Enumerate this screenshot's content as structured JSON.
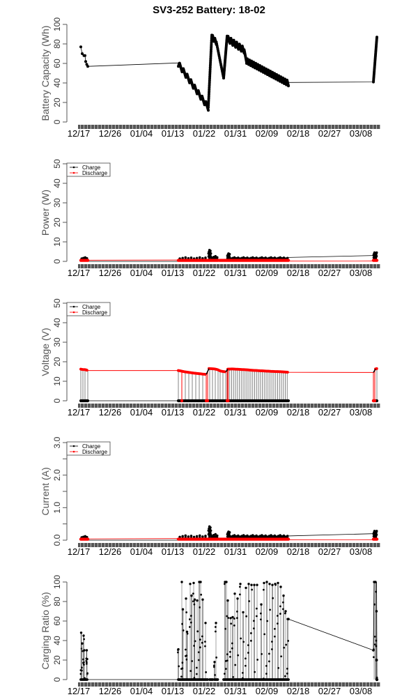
{
  "chart_data": [
    {
      "type": "line",
      "title": "SV3-252 Battery: 18-02",
      "ylabel": "Battery Capacity (Wh)",
      "xlabel": "",
      "ylim": [
        0,
        100
      ],
      "yticks": [
        "0",
        "20",
        "40",
        "60",
        "80",
        "100"
      ],
      "x_tick_labels": [
        "12/17",
        "12/26",
        "01/04",
        "01/13",
        "01/22",
        "01/31",
        "02/09",
        "02/18",
        "02/27",
        "03/08"
      ],
      "x_range_days": [
        0,
        87
      ],
      "legend": null,
      "series": [
        {
          "name": "Battery Capacity",
          "color": "#000000",
          "segments": [
            {
              "kind": "points",
              "x": [
                0.6,
                1.0,
                1.5,
                1.8,
                2.0,
                2.3,
                2.6
              ],
              "y": [
                77,
                70,
                68,
                68,
                62,
                59,
                57
              ]
            },
            {
              "kind": "flat",
              "from": [
                2.6,
                57
              ],
              "to": [
                28.6,
                60.5
              ]
            },
            {
              "kind": "sawtooth",
              "x0": 28.6,
              "x1": 37.2,
              "y0": 60,
              "y1": 15,
              "amp": 6,
              "cycles": 8
            },
            {
              "kind": "ramp",
              "x0": 37.2,
              "x1": 38.2,
              "y0": 15,
              "y1": 89,
              "n": 40
            },
            {
              "kind": "sawtooth",
              "x0": 38.2,
              "x1": 39.5,
              "y0": 88,
              "y1": 82,
              "amp": 5,
              "cycles": 2
            },
            {
              "kind": "ramp",
              "x0": 39.5,
              "x1": 41.6,
              "y0": 82,
              "y1": 45,
              "n": 20
            },
            {
              "kind": "ramp",
              "x0": 41.6,
              "x1": 42.6,
              "y0": 45,
              "y1": 88,
              "n": 35
            },
            {
              "kind": "sawtooth",
              "x0": 42.6,
              "x1": 47.5,
              "y0": 86,
              "y1": 74,
              "amp": 7,
              "cycles": 6
            },
            {
              "kind": "ramp",
              "x0": 47.5,
              "x1": 48.2,
              "y0": 74,
              "y1": 61,
              "n": 10
            },
            {
              "kind": "sawtooth",
              "x0": 48.2,
              "x1": 60.2,
              "y0": 63,
              "y1": 40,
              "amp": 6,
              "cycles": 20
            },
            {
              "kind": "flat",
              "from": [
                60.2,
                40.5
              ],
              "to": [
                84.6,
                41
              ]
            },
            {
              "kind": "ramp",
              "x0": 84.6,
              "x1": 85.6,
              "y0": 41,
              "y1": 87,
              "n": 30
            }
          ]
        }
      ]
    },
    {
      "type": "line",
      "ylabel": "Power (W)",
      "ylim": [
        0,
        50
      ],
      "yticks": [
        "0",
        "10",
        "20",
        "30",
        "40",
        "50"
      ],
      "x_tick_labels": [
        "12/17",
        "12/26",
        "01/04",
        "01/13",
        "01/22",
        "01/31",
        "02/09",
        "02/18",
        "02/27",
        "03/08"
      ],
      "legend": {
        "position": "top-left",
        "entries": [
          "Charge",
          "Discharge"
        ]
      },
      "series": [
        {
          "name": "Charge",
          "color": "#000000",
          "baseline": 0,
          "spikes": [
            {
              "day_range": [
                0.6,
                2.6
              ],
              "count": 4,
              "peak": 2
            },
            {
              "day_range": [
                28.6,
                36.8
              ],
              "count": 10,
              "peak": 2
            },
            {
              "day_range": [
                37.2,
                38.0
              ],
              "count": 6,
              "peak": 5.8
            },
            {
              "day_range": [
                38.0,
                40.0
              ],
              "count": 4,
              "peak": 2.6
            },
            {
              "day_range": [
                42.6,
                43.4
              ],
              "count": 5,
              "peak": 4
            },
            {
              "day_range": [
                43.4,
                60.2
              ],
              "count": 32,
              "peak": 2
            },
            {
              "day_range": [
                84.6,
                85.6
              ],
              "count": 8,
              "peak": 4.5
            }
          ],
          "tail_line": {
            "from": [
              60.2,
              2
            ],
            "to": [
              84.6,
              3
            ]
          }
        },
        {
          "name": "Discharge",
          "color": "#ff0000",
          "level": 0.5,
          "ranges": [
            [
              0.6,
              2.6
            ],
            [
              28.6,
              40.0
            ],
            [
              40.4,
              60.2
            ],
            [
              84.6,
              85.6
            ]
          ],
          "tail_line": {
            "from": [
              2.6,
              0.6
            ],
            "to": [
              28.6,
              0.7
            ]
          }
        }
      ]
    },
    {
      "type": "line",
      "ylabel": "Voltage (V)",
      "ylim": [
        0,
        50
      ],
      "yticks": [
        "0",
        "10",
        "20",
        "30",
        "40",
        "50"
      ],
      "x_tick_labels": [
        "12/17",
        "12/26",
        "01/04",
        "01/13",
        "01/22",
        "01/31",
        "02/09",
        "02/18",
        "02/27",
        "03/08"
      ],
      "legend": {
        "position": "top-left",
        "entries": [
          "Charge",
          "Discharge"
        ]
      },
      "series": [
        {
          "name": "Discharge",
          "color": "#ff0000",
          "points": [
            [
              0.6,
              16.2
            ],
            [
              1.2,
              16.0
            ],
            [
              1.8,
              16.0
            ],
            [
              2.6,
              15.5
            ],
            [
              28.6,
              15.5
            ],
            [
              29.5,
              15.2
            ],
            [
              30.5,
              14.8
            ],
            [
              31.5,
              14.6
            ],
            [
              32.5,
              14.3
            ],
            [
              33.5,
              14.1
            ],
            [
              34.5,
              13.9
            ],
            [
              35.5,
              13.7
            ],
            [
              36.6,
              13.5
            ],
            [
              37.4,
              16.5
            ],
            [
              38.2,
              16.4
            ],
            [
              39.0,
              16.3
            ],
            [
              39.8,
              16.0
            ],
            [
              40.6,
              15.3
            ],
            [
              41.4,
              15.0
            ],
            [
              42.2,
              14.8
            ],
            [
              42.8,
              16.2
            ],
            [
              44,
              16.3
            ],
            [
              46,
              16.1
            ],
            [
              48,
              15.9
            ],
            [
              50,
              15.6
            ],
            [
              52,
              15.4
            ],
            [
              54,
              15.2
            ],
            [
              56,
              15.0
            ],
            [
              58,
              14.9
            ],
            [
              60.2,
              14.6
            ],
            [
              84.6,
              14.5
            ],
            [
              85.2,
              16.3
            ],
            [
              85.6,
              16.5
            ]
          ]
        },
        {
          "name": "Charge",
          "color": "#000000",
          "level": 0,
          "ranges": [
            [
              0.6,
              2.6
            ],
            [
              28.6,
              40.0
            ],
            [
              40.4,
              60.2
            ],
            [
              84.6,
              85.6
            ]
          ]
        }
      ]
    },
    {
      "type": "line",
      "ylabel": "Current (A)",
      "ylim": [
        0,
        3.0
      ],
      "yticks": [
        "0.0",
        "1.0",
        "2.0",
        "3.0"
      ],
      "x_tick_labels": [
        "12/17",
        "12/26",
        "01/04",
        "01/13",
        "01/22",
        "01/31",
        "02/09",
        "02/18",
        "02/27",
        "03/08"
      ],
      "legend": {
        "position": "top-left",
        "entries": [
          "Charge",
          "Discharge"
        ]
      },
      "series": [
        {
          "name": "Charge",
          "color": "#000000",
          "baseline": 0,
          "spikes": [
            {
              "day_range": [
                0.6,
                2.6
              ],
              "count": 4,
              "peak": 0.12
            },
            {
              "day_range": [
                28.6,
                36.8
              ],
              "count": 10,
              "peak": 0.14
            },
            {
              "day_range": [
                37.2,
                38.0
              ],
              "count": 6,
              "peak": 0.42
            },
            {
              "day_range": [
                38.0,
                40.0
              ],
              "count": 4,
              "peak": 0.18
            },
            {
              "day_range": [
                42.6,
                43.4
              ],
              "count": 5,
              "peak": 0.26
            },
            {
              "day_range": [
                43.4,
                60.2
              ],
              "count": 32,
              "peak": 0.15
            },
            {
              "day_range": [
                84.6,
                85.6
              ],
              "count": 8,
              "peak": 0.28
            }
          ],
          "tail_line": {
            "from": [
              60.2,
              0.13
            ],
            "to": [
              84.6,
              0.2
            ]
          }
        },
        {
          "name": "Discharge",
          "color": "#ff0000",
          "level": 0.03,
          "ranges": [
            [
              0.6,
              2.6
            ],
            [
              28.6,
              40.0
            ],
            [
              40.4,
              60.2
            ],
            [
              84.6,
              85.6
            ]
          ],
          "tail_line": {
            "from": [
              2.6,
              0.04
            ],
            "to": [
              28.6,
              0.05
            ]
          }
        }
      ]
    },
    {
      "type": "line",
      "ylabel": "Carging Ratio (%)",
      "ylim": [
        0,
        100
      ],
      "yticks": [
        "0",
        "20",
        "40",
        "60",
        "80",
        "100"
      ],
      "x_tick_labels": [
        "12/17",
        "12/26",
        "01/04",
        "01/13",
        "01/22",
        "01/31",
        "02/09",
        "02/18",
        "02/27",
        "03/08"
      ],
      "legend": null,
      "series": [
        {
          "name": "Charging Ratio",
          "color": "#000000",
          "spikes": [
            [
              0.7,
              48
            ],
            [
              1.0,
              37
            ],
            [
              1.4,
              45
            ],
            [
              1.6,
              30
            ],
            [
              2.3,
              30
            ],
            [
              2.4,
              21
            ],
            [
              28.6,
              31
            ],
            [
              29.6,
              100
            ],
            [
              29.9,
              72
            ],
            [
              30.8,
              83
            ],
            [
              31.1,
              49
            ],
            [
              32.0,
              98
            ],
            [
              32.4,
              86
            ],
            [
              33.0,
              99
            ],
            [
              33.3,
              82
            ],
            [
              34.0,
              81
            ],
            [
              34.6,
              100
            ],
            [
              35.0,
              100
            ],
            [
              35.6,
              82
            ],
            [
              36.4,
              58
            ],
            [
              39.0,
              18
            ],
            [
              39.4,
              58
            ],
            [
              42.0,
              100
            ],
            [
              42.4,
              100
            ],
            [
              42.8,
              81
            ],
            [
              43.6,
              63
            ],
            [
              44.2,
              64
            ],
            [
              44.8,
              88
            ],
            [
              45.6,
              83
            ],
            [
              46.4,
              98
            ],
            [
              47.2,
              69
            ],
            [
              48.0,
              94
            ],
            [
              48.8,
              98
            ],
            [
              49.6,
              97
            ],
            [
              50.4,
              97
            ],
            [
              51.2,
              97
            ],
            [
              52.4,
              77
            ],
            [
              53.2,
              99
            ],
            [
              54.0,
              100
            ],
            [
              54.8,
              98
            ],
            [
              55.6,
              97
            ],
            [
              56.4,
              98
            ],
            [
              57.2,
              99
            ],
            [
              58.0,
              95
            ],
            [
              58.8,
              86
            ],
            [
              59.4,
              70
            ],
            [
              60.0,
              62
            ],
            [
              84.8,
              100
            ],
            [
              85.2,
              100
            ],
            [
              85.5,
              70
            ]
          ],
          "zero_ranges": [
            [
              0.6,
              2.6
            ],
            [
              28.6,
              37.0
            ],
            [
              37.6,
              38.6
            ],
            [
              39.0,
              40.0
            ],
            [
              41.6,
              60.2
            ],
            [
              85.6,
              85.7
            ]
          ],
          "tail_line": {
            "from": [
              60.2,
              62
            ],
            "to": [
              84.6,
              30
            ]
          },
          "head_line": {
            "from": [
              2.6,
              0
            ],
            "to": [
              28.6,
              0
            ]
          }
        }
      ]
    }
  ]
}
